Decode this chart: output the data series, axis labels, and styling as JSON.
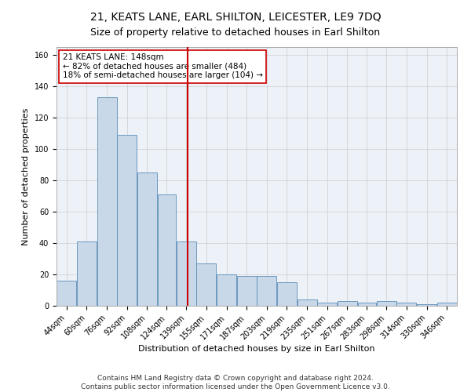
{
  "title": "21, KEATS LANE, EARL SHILTON, LEICESTER, LE9 7DQ",
  "subtitle": "Size of property relative to detached houses in Earl Shilton",
  "xlabel": "Distribution of detached houses by size in Earl Shilton",
  "ylabel": "Number of detached properties",
  "bar_color": "#c8d8e8",
  "bar_edge_color": "#5b8db8",
  "grid_color": "#cccccc",
  "background_color": "#edf2f8",
  "vline_color": "#cc0000",
  "vline_x": 148,
  "annotation_line1": "21 KEATS LANE: 148sqm",
  "annotation_line2": "← 82% of detached houses are smaller (484)",
  "annotation_line3": "18% of semi-detached houses are larger (104) →",
  "annotation_box_color": "#ffffff",
  "annotation_edge_color": "#cc0000",
  "bin_edges": [
    44,
    60,
    76,
    92,
    108,
    124,
    139,
    155,
    171,
    187,
    203,
    219,
    235,
    251,
    267,
    283,
    298,
    314,
    330,
    346,
    362
  ],
  "bar_heights": [
    16,
    41,
    133,
    109,
    85,
    71,
    41,
    27,
    20,
    19,
    19,
    15,
    4,
    2,
    3,
    2,
    3,
    2,
    1,
    2
  ],
  "ylim": [
    0,
    165
  ],
  "yticks": [
    0,
    20,
    40,
    60,
    80,
    100,
    120,
    140,
    160
  ],
  "footer_text": "Contains HM Land Registry data © Crown copyright and database right 2024.\nContains public sector information licensed under the Open Government Licence v3.0.",
  "title_fontsize": 10,
  "subtitle_fontsize": 9,
  "axis_label_fontsize": 8,
  "tick_fontsize": 7,
  "footer_fontsize": 6.5,
  "annotation_fontsize": 7.5
}
